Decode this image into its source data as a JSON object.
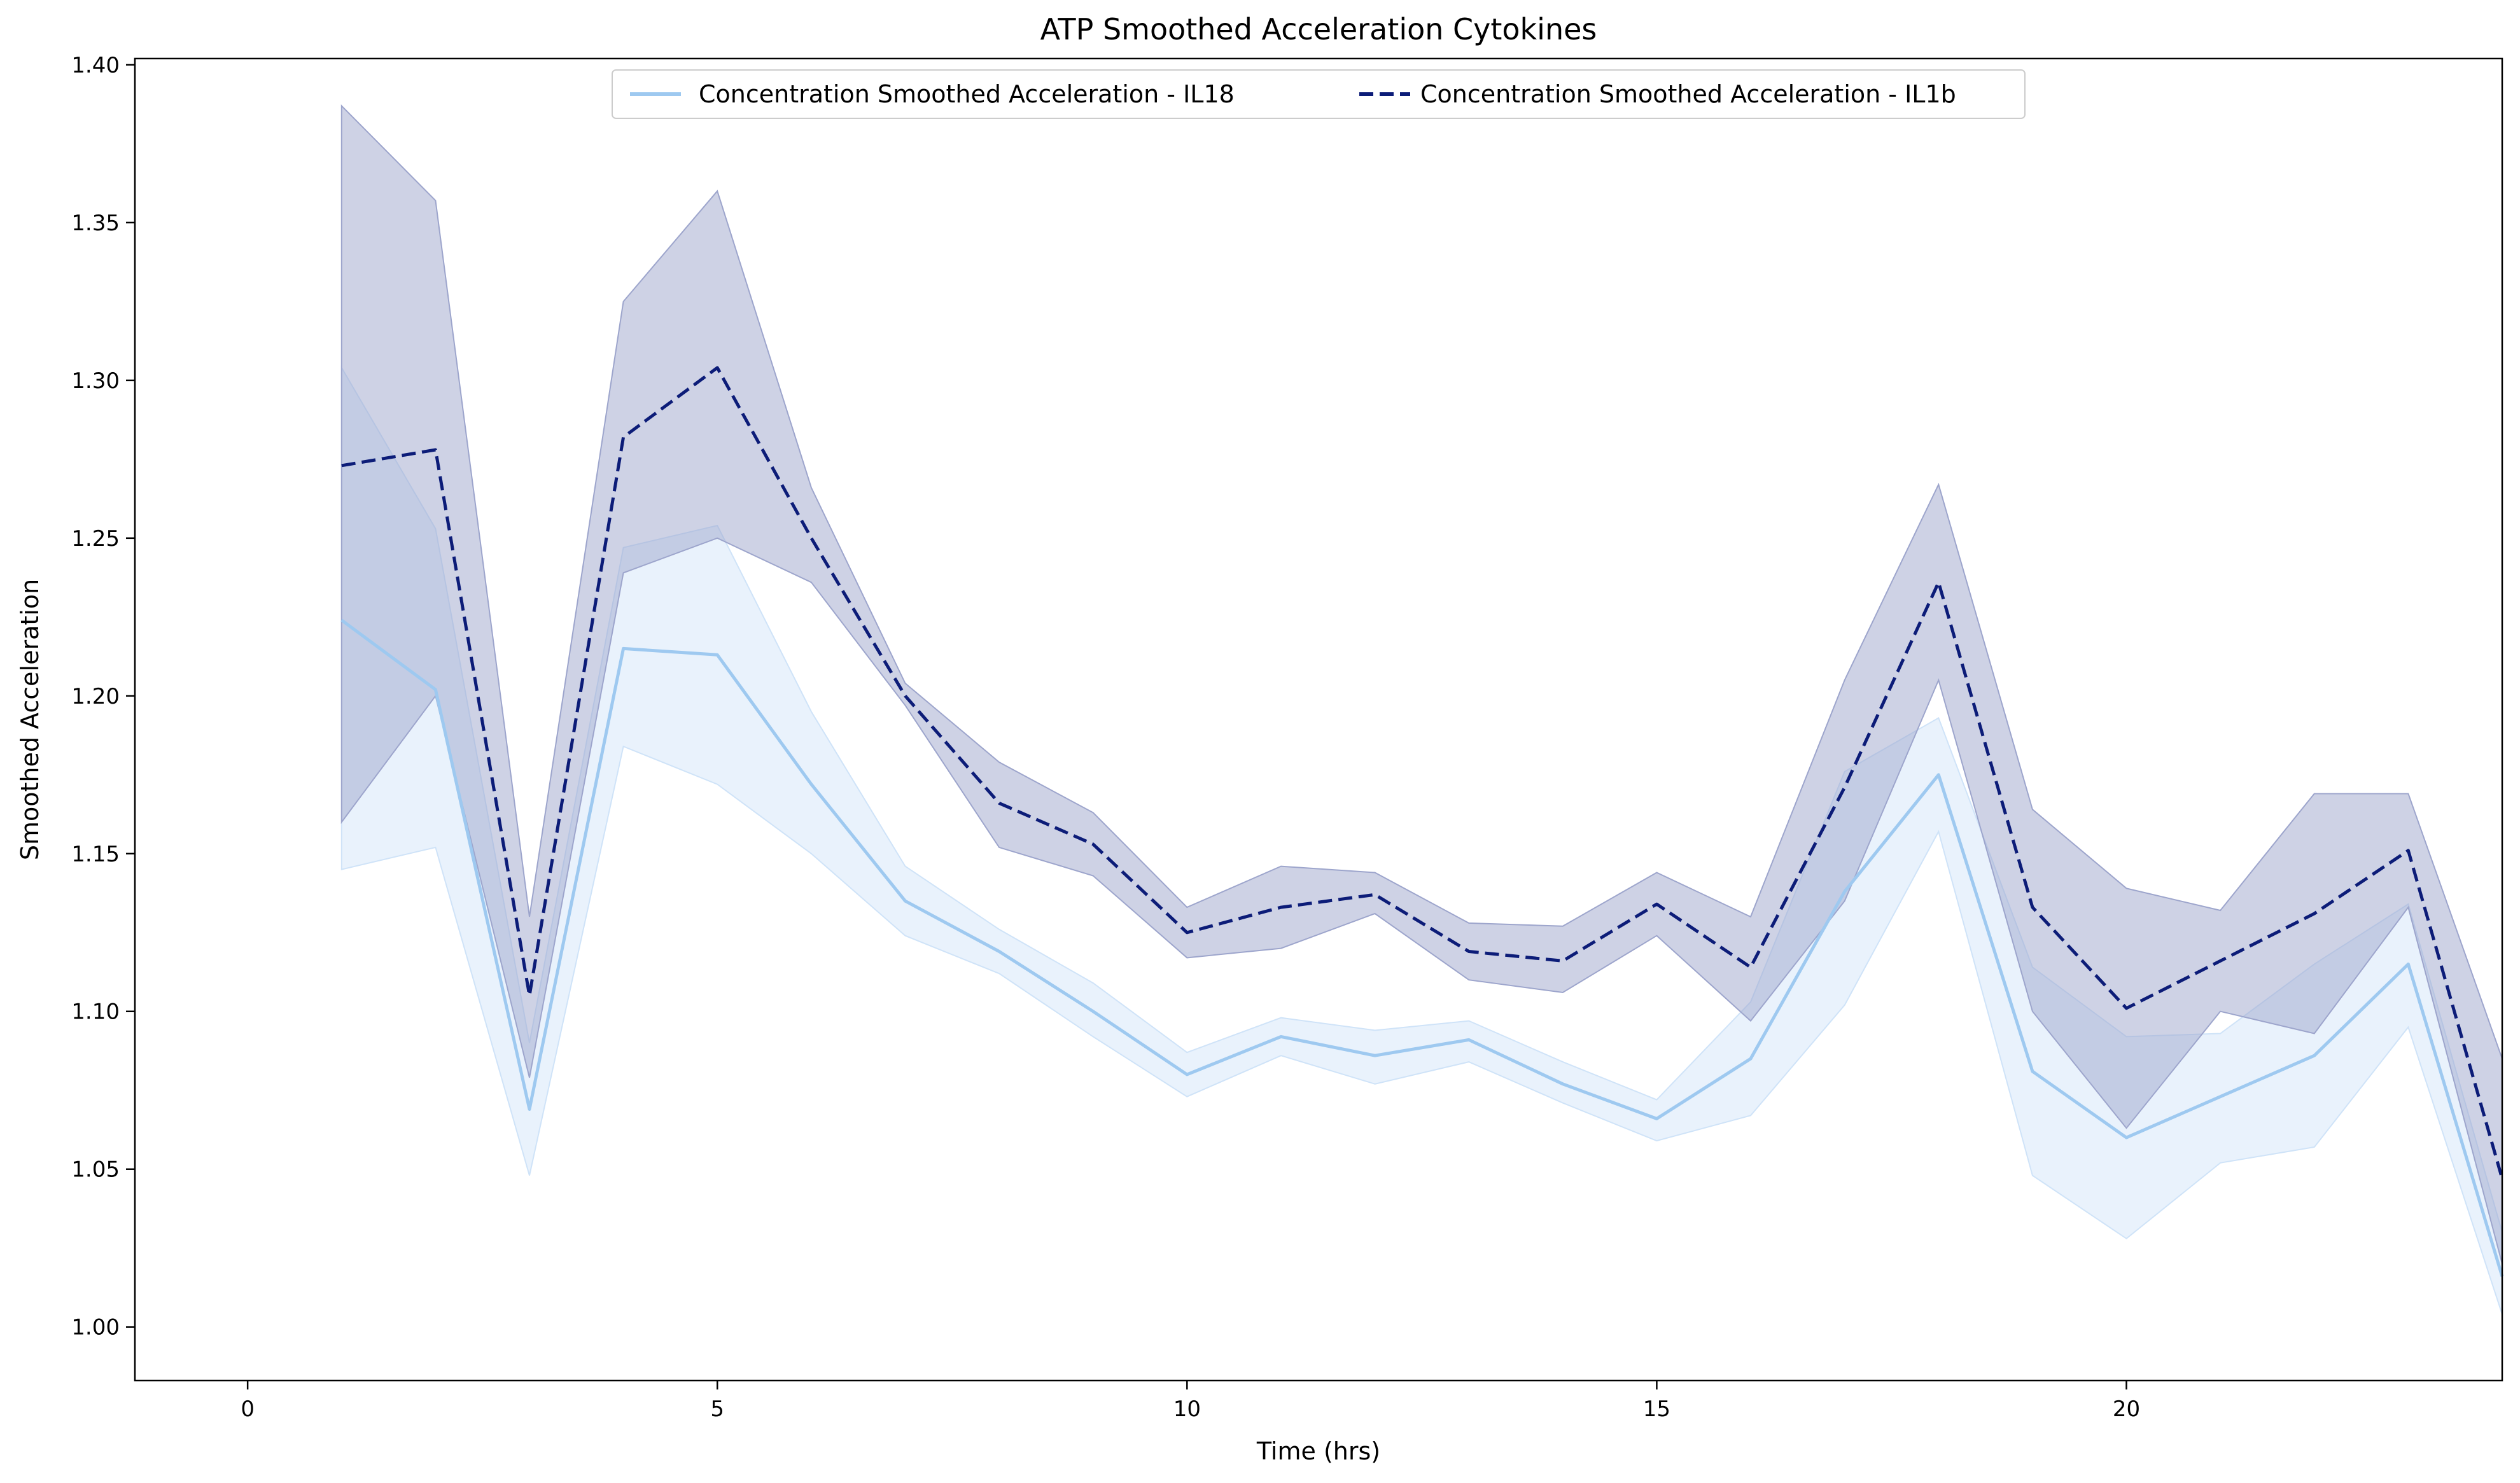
{
  "chart_data": {
    "type": "line",
    "title": "ATP Smoothed Acceleration Cytokines",
    "xlabel": "Time (hrs)",
    "ylabel": "Smoothed Acceleration",
    "xlim": [
      -1.2,
      24
    ],
    "ylim": [
      0.983,
      1.402
    ],
    "xticks": [
      0,
      5,
      10,
      15,
      20
    ],
    "yticks": [
      1.0,
      1.05,
      1.1,
      1.15,
      1.2,
      1.25,
      1.3,
      1.35,
      1.4
    ],
    "xtick_labels": [
      "0",
      "5",
      "10",
      "15",
      "20"
    ],
    "ytick_labels": [
      "1.00",
      "1.05",
      "1.10",
      "1.15",
      "1.20",
      "1.25",
      "1.30",
      "1.35",
      "1.40"
    ],
    "grid": false,
    "legend_position": "top-center",
    "x": [
      1,
      2,
      3,
      4,
      5,
      6,
      7,
      8,
      9,
      10,
      11,
      12,
      13,
      14,
      15,
      16,
      17,
      18,
      19,
      20,
      21,
      22,
      23,
      24
    ],
    "series": [
      {
        "name": "Concentration Smoothed Acceleration  - IL18",
        "color": "#9ec9f0",
        "band_color": "#cfe3f8",
        "style": "solid",
        "values": [
          1.224,
          1.202,
          1.069,
          1.215,
          1.213,
          1.172,
          1.135,
          1.119,
          1.1,
          1.08,
          1.092,
          1.086,
          1.091,
          1.077,
          1.066,
          1.085,
          1.138,
          1.175,
          1.081,
          1.06,
          1.073,
          1.086,
          1.115,
          1.016
        ],
        "lower": [
          1.145,
          1.152,
          1.048,
          1.184,
          1.172,
          1.15,
          1.124,
          1.112,
          1.092,
          1.073,
          1.086,
          1.077,
          1.084,
          1.071,
          1.059,
          1.067,
          1.102,
          1.157,
          1.048,
          1.028,
          1.052,
          1.057,
          1.095,
          1.004
        ],
        "upper": [
          1.304,
          1.253,
          1.09,
          1.247,
          1.254,
          1.195,
          1.146,
          1.126,
          1.109,
          1.087,
          1.098,
          1.094,
          1.097,
          1.084,
          1.072,
          1.103,
          1.176,
          1.193,
          1.114,
          1.092,
          1.093,
          1.115,
          1.134,
          1.03
        ]
      },
      {
        "name": "Concentration Smoothed Acceleration  - IL1b",
        "color": "#0c1c78",
        "band_color": "#9da5cc",
        "style": "dashed",
        "values": [
          1.273,
          1.278,
          1.105,
          1.282,
          1.304,
          1.25,
          1.2,
          1.166,
          1.153,
          1.125,
          1.133,
          1.137,
          1.119,
          1.116,
          1.134,
          1.114,
          1.171,
          1.236,
          1.133,
          1.101,
          1.116,
          1.131,
          1.151,
          1.047
        ],
        "lower": [
          1.16,
          1.2,
          1.079,
          1.239,
          1.25,
          1.236,
          1.197,
          1.152,
          1.143,
          1.117,
          1.12,
          1.131,
          1.11,
          1.106,
          1.124,
          1.097,
          1.135,
          1.205,
          1.1,
          1.063,
          1.1,
          1.093,
          1.133,
          1.02
        ],
        "upper": [
          1.387,
          1.357,
          1.13,
          1.325,
          1.36,
          1.266,
          1.204,
          1.179,
          1.163,
          1.133,
          1.146,
          1.144,
          1.128,
          1.127,
          1.144,
          1.13,
          1.205,
          1.267,
          1.164,
          1.139,
          1.132,
          1.169,
          1.169,
          1.085
        ]
      }
    ]
  }
}
